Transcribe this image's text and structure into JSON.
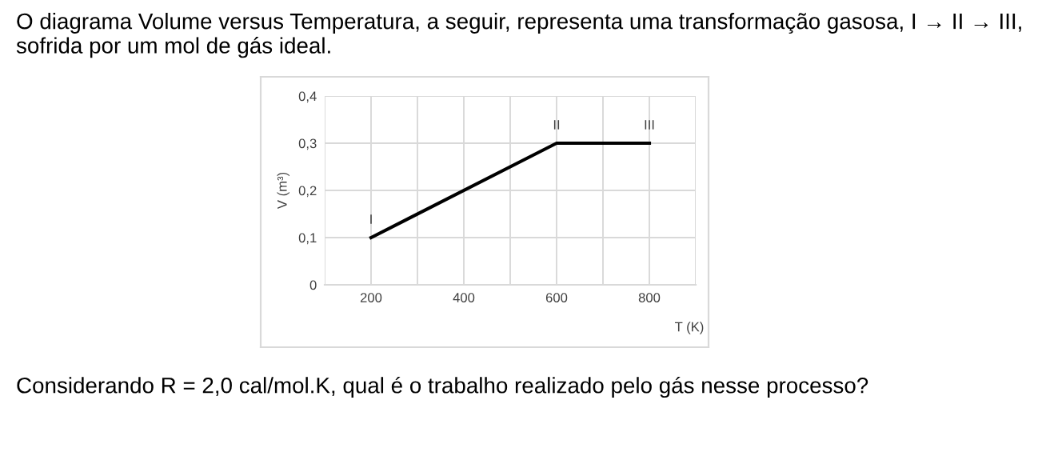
{
  "chart_data": {
    "type": "line",
    "title": "O diagrama Volume versus Temperatura, a seguir, representa uma transformação gasosa, I → II → III, sofrida por um mol de gás ideal.",
    "x": [
      200,
      600,
      800
    ],
    "series": [
      {
        "color": "#000000",
        "values": [
          0.1,
          0.3,
          0.3
        ]
      }
    ],
    "xlabel": "T (K)",
    "ylabel": "V (m³)",
    "xlim": [
      100,
      900
    ],
    "xticks": [
      {
        "value": 100,
        "label": null
      },
      200,
      {
        "value": 300,
        "label": null
      },
      400,
      {
        "value": 500,
        "label": null
      },
      600,
      {
        "value": 700,
        "label": null
      },
      800,
      {
        "value": 900,
        "label": null
      }
    ],
    "ylim": [
      0,
      0.4
    ],
    "yticks": [
      {
        "value": 0,
        "label": "0"
      },
      {
        "value": 0.1,
        "label": "0,1"
      },
      {
        "value": 0.2,
        "label": "0,2"
      },
      {
        "value": 0.3,
        "label": "0,3"
      },
      {
        "value": 0.4,
        "label": "0,4"
      }
    ],
    "grid": true,
    "marker": "none",
    "line_style": "solid",
    "annotations": [
      {
        "text": "I",
        "x": 200,
        "y": 0.1
      },
      {
        "text": "II",
        "x": 600,
        "y": 0.3
      },
      {
        "text": "III",
        "x": 800,
        "y": 0.3
      },
      "Considerando R = 2,0 cal/mol.K, qual é o trabalho realizado pelo gás nesse processo?"
    ]
  }
}
